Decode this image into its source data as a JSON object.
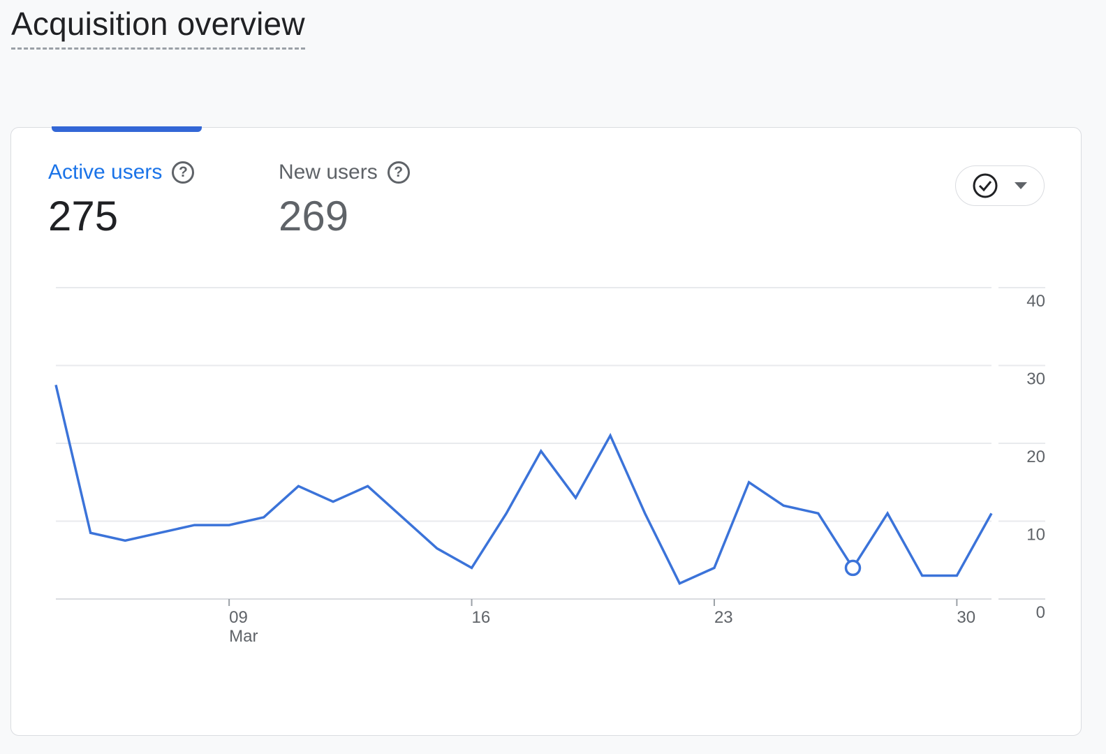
{
  "page": {
    "title": "Acquisition overview"
  },
  "metrics": [
    {
      "label": "Active users",
      "value": "275",
      "help_icon": "help-circle-icon"
    },
    {
      "label": "New users",
      "value": "269",
      "help_icon": "help-circle-icon"
    }
  ],
  "compare_control": {
    "icon": "check-circle-icon",
    "dropdown_icon": "arrow-drop-down-icon"
  },
  "colors": {
    "accent": "#1a73e8",
    "line": "#3b73d9",
    "grid": "#e8eaed",
    "text_muted": "#5f6368"
  },
  "chart_data": {
    "type": "line",
    "series": [
      {
        "values": [
          27.5,
          8.5,
          7.5,
          8.5,
          9.5,
          9.5,
          10.5,
          14.5,
          12.5,
          14.5,
          10.5,
          6.5,
          4.0,
          11.0,
          19.0,
          13.0,
          21.0,
          11.0,
          2.0,
          4.0,
          15.0,
          12.0,
          11.0,
          4.0,
          11.0,
          3.0,
          3.0,
          11.0
        ]
      }
    ],
    "x_ticks": [
      {
        "index": 5,
        "label": "09",
        "sublabel": "Mar"
      },
      {
        "index": 12,
        "label": "16"
      },
      {
        "index": 19,
        "label": "23"
      },
      {
        "index": 26,
        "label": "30"
      }
    ],
    "y_ticks": [
      0,
      10,
      20,
      30,
      40
    ],
    "ylim": [
      0,
      40
    ],
    "highlight_index": 23,
    "grid": true
  }
}
